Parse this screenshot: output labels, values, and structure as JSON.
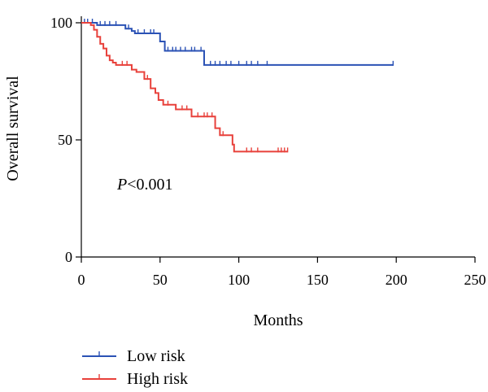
{
  "chart_data": {
    "type": "line",
    "subtype": "kaplan-meier",
    "title": "",
    "xlabel": "Months",
    "ylabel": "Overall survival",
    "xlim": [
      0,
      250
    ],
    "ylim": [
      0,
      100
    ],
    "xticks": [
      0,
      50,
      100,
      150,
      200,
      250
    ],
    "yticks": [
      0,
      50,
      100
    ],
    "annotation": "P<0.001",
    "annotation_italic": "P",
    "annotation_rest": "<0.001",
    "grid": false,
    "legend_position": "bottom-left",
    "series": [
      {
        "name": "Low risk",
        "color": "#2b52b5",
        "steps": [
          [
            0,
            100
          ],
          [
            5,
            100
          ],
          [
            10,
            99
          ],
          [
            24,
            99
          ],
          [
            28,
            97.5
          ],
          [
            32,
            96.5
          ],
          [
            34,
            95.5
          ],
          [
            47,
            95.5
          ],
          [
            50,
            92
          ],
          [
            53,
            88
          ],
          [
            77,
            88
          ],
          [
            78,
            82
          ],
          [
            198,
            82
          ]
        ],
        "censors": [
          [
            2,
            100
          ],
          [
            4,
            100
          ],
          [
            7,
            100
          ],
          [
            12,
            99
          ],
          [
            15,
            99
          ],
          [
            18,
            99
          ],
          [
            22,
            99
          ],
          [
            30,
            97.5
          ],
          [
            36,
            95.5
          ],
          [
            40,
            95.5
          ],
          [
            44,
            95.5
          ],
          [
            46,
            95.5
          ],
          [
            55,
            88
          ],
          [
            58,
            88
          ],
          [
            60,
            88
          ],
          [
            63,
            88
          ],
          [
            66,
            88
          ],
          [
            70,
            88
          ],
          [
            72,
            88
          ],
          [
            76,
            88
          ],
          [
            82,
            82
          ],
          [
            85,
            82
          ],
          [
            88,
            82
          ],
          [
            92,
            82
          ],
          [
            95,
            82
          ],
          [
            100,
            82
          ],
          [
            105,
            82
          ],
          [
            108,
            82
          ],
          [
            112,
            82
          ],
          [
            118,
            82
          ],
          [
            198,
            82
          ]
        ]
      },
      {
        "name": "High risk",
        "color": "#e8413b",
        "steps": [
          [
            0,
            100
          ],
          [
            6,
            99
          ],
          [
            8,
            97
          ],
          [
            10,
            94
          ],
          [
            12,
            91
          ],
          [
            14,
            89
          ],
          [
            16,
            86
          ],
          [
            18,
            84
          ],
          [
            20,
            83
          ],
          [
            22,
            82
          ],
          [
            32,
            80
          ],
          [
            35,
            79
          ],
          [
            40,
            76
          ],
          [
            44,
            72
          ],
          [
            47,
            70
          ],
          [
            49,
            67
          ],
          [
            52,
            65
          ],
          [
            60,
            63
          ],
          [
            70,
            60
          ],
          [
            85,
            55
          ],
          [
            88,
            52
          ],
          [
            96,
            48
          ],
          [
            97,
            45
          ],
          [
            131,
            45
          ]
        ],
        "censors": [
          [
            26,
            82
          ],
          [
            29,
            82
          ],
          [
            42,
            76
          ],
          [
            55,
            65
          ],
          [
            64,
            63
          ],
          [
            67,
            63
          ],
          [
            74,
            60
          ],
          [
            78,
            60
          ],
          [
            80,
            60
          ],
          [
            83,
            60
          ],
          [
            90,
            52
          ],
          [
            105,
            45
          ],
          [
            108,
            45
          ],
          [
            112,
            45
          ],
          [
            125,
            45
          ],
          [
            127,
            45
          ],
          [
            129,
            45
          ],
          [
            131,
            45
          ]
        ]
      }
    ]
  }
}
